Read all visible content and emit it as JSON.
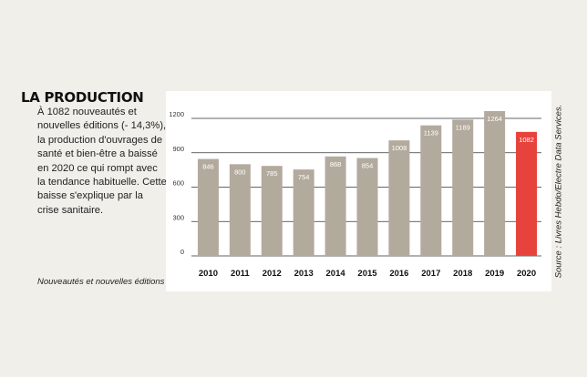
{
  "article": {
    "heading": "LA PRODUCTION",
    "body": "À 1082 nouveautés et nouvelles éditions (- 14,3%), la production d'ouvrages de santé et bien-être a baissé en 2020 ce qui rompt avec la tendance habituelle. Cette baisse s'explique par la crise sanitaire.",
    "footnote": "Nouveautés et nouvelles éditions",
    "source": "Source : Livres Hebdo/Electre Data Services."
  },
  "colors": {
    "bar": "#b3aa9e",
    "highlight": "#e8423c",
    "grid": "#333333"
  },
  "chart_data": {
    "type": "bar",
    "title": "",
    "xlabel": "",
    "ylabel": "",
    "categories": [
      "2010",
      "2011",
      "2012",
      "2013",
      "2014",
      "2015",
      "2016",
      "2017",
      "2018",
      "2019",
      "2020"
    ],
    "values": [
      846,
      800,
      785,
      754,
      868,
      854,
      1008,
      1139,
      1189,
      1264,
      1082
    ],
    "data_labels": [
      "846",
      "800",
      "785",
      "754",
      "868",
      "854",
      "1008",
      "1139",
      "1189",
      "1264",
      "1082"
    ],
    "yticks": [
      "0",
      "300",
      "600",
      "900",
      "1200"
    ],
    "ylim": [
      0,
      1200
    ],
    "highlight_category": "2020",
    "grid": true,
    "legend": "none"
  }
}
